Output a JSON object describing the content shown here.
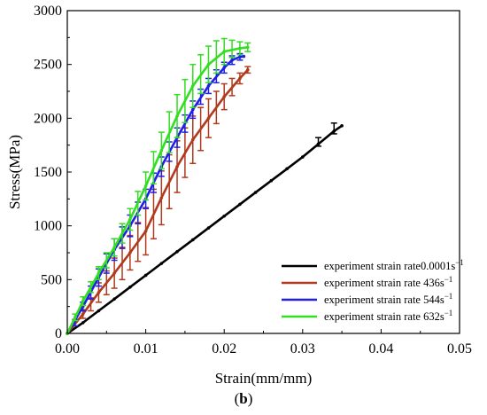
{
  "chart_data": {
    "type": "line",
    "xlabel": "Strain(mm/mm)",
    "ylabel": "Stress(MPa)",
    "xlim": [
      0,
      0.05
    ],
    "ylim": [
      0,
      3000
    ],
    "xticks": [
      "0.00",
      "0.01",
      "0.02",
      "0.03",
      "0.04",
      "0.05"
    ],
    "yticks": [
      "0",
      "500",
      "1000",
      "1500",
      "2000",
      "2500",
      "3000"
    ],
    "grid": false,
    "legend_position": "bottom-right",
    "caption_prefix": "(",
    "caption_label": "b",
    "caption_suffix": ")",
    "series": [
      {
        "name": "experiment strain rate0.0001s",
        "name_sup": "−1",
        "color": "#000000",
        "points": [
          [
            0,
            0
          ],
          [
            0.002,
            100
          ],
          [
            0.004,
            210
          ],
          [
            0.006,
            320
          ],
          [
            0.008,
            430
          ],
          [
            0.01,
            540
          ],
          [
            0.012,
            650
          ],
          [
            0.014,
            760
          ],
          [
            0.016,
            870
          ],
          [
            0.018,
            980
          ],
          [
            0.02,
            1090
          ],
          [
            0.022,
            1200
          ],
          [
            0.024,
            1310
          ],
          [
            0.026,
            1420
          ],
          [
            0.028,
            1530
          ],
          [
            0.03,
            1640
          ],
          [
            0.032,
            1760
          ],
          [
            0.034,
            1880
          ],
          [
            0.035,
            1930
          ]
        ],
        "errorbars": [
          [
            0.032,
            1780,
            40
          ],
          [
            0.034,
            1905,
            50
          ]
        ]
      },
      {
        "name": "experiment strain rate 436s",
        "name_sup": "−1",
        "color": "#b03a1e",
        "points": [
          [
            0,
            0
          ],
          [
            0.002,
            180
          ],
          [
            0.004,
            380
          ],
          [
            0.006,
            560
          ],
          [
            0.008,
            750
          ],
          [
            0.01,
            950
          ],
          [
            0.012,
            1260
          ],
          [
            0.014,
            1550
          ],
          [
            0.016,
            1800
          ],
          [
            0.018,
            2000
          ],
          [
            0.02,
            2200
          ],
          [
            0.022,
            2370
          ],
          [
            0.023,
            2450
          ]
        ],
        "errorbars": [
          [
            0.002,
            180,
            40
          ],
          [
            0.003,
            270,
            60
          ],
          [
            0.004,
            380,
            90
          ],
          [
            0.005,
            470,
            110
          ],
          [
            0.006,
            560,
            140
          ],
          [
            0.007,
            650,
            150
          ],
          [
            0.008,
            750,
            160
          ],
          [
            0.009,
            850,
            180
          ],
          [
            0.01,
            950,
            220
          ],
          [
            0.011,
            1110,
            230
          ],
          [
            0.012,
            1260,
            250
          ],
          [
            0.013,
            1410,
            250
          ],
          [
            0.014,
            1550,
            240
          ],
          [
            0.015,
            1680,
            230
          ],
          [
            0.016,
            1800,
            220
          ],
          [
            0.017,
            1900,
            200
          ],
          [
            0.018,
            2000,
            180
          ],
          [
            0.019,
            2100,
            150
          ],
          [
            0.02,
            2200,
            120
          ],
          [
            0.021,
            2290,
            80
          ],
          [
            0.022,
            2370,
            50
          ],
          [
            0.023,
            2450,
            30
          ]
        ]
      },
      {
        "name": "experiment strain rate 544s",
        "name_sup": "−1",
        "color": "#1f1fe6",
        "points": [
          [
            0,
            0
          ],
          [
            0.002,
            250
          ],
          [
            0.004,
            520
          ],
          [
            0.006,
            780
          ],
          [
            0.008,
            1000
          ],
          [
            0.01,
            1250
          ],
          [
            0.012,
            1550
          ],
          [
            0.014,
            1820
          ],
          [
            0.016,
            2080
          ],
          [
            0.018,
            2300
          ],
          [
            0.02,
            2470
          ],
          [
            0.021,
            2540
          ],
          [
            0.022,
            2570
          ],
          [
            0.0225,
            2575
          ]
        ],
        "errorbars": [
          [
            0.001,
            100,
            30
          ],
          [
            0.002,
            250,
            40
          ],
          [
            0.003,
            380,
            60
          ],
          [
            0.004,
            520,
            80
          ],
          [
            0.005,
            650,
            90
          ],
          [
            0.006,
            780,
            100
          ],
          [
            0.007,
            890,
            100
          ],
          [
            0.008,
            1000,
            100
          ],
          [
            0.009,
            1120,
            100
          ],
          [
            0.01,
            1250,
            90
          ],
          [
            0.011,
            1400,
            90
          ],
          [
            0.012,
            1550,
            90
          ],
          [
            0.013,
            1690,
            90
          ],
          [
            0.014,
            1820,
            90
          ],
          [
            0.015,
            1950,
            80
          ],
          [
            0.016,
            2080,
            80
          ],
          [
            0.017,
            2200,
            70
          ],
          [
            0.018,
            2300,
            70
          ],
          [
            0.019,
            2390,
            60
          ],
          [
            0.02,
            2470,
            50
          ],
          [
            0.021,
            2540,
            40
          ],
          [
            0.022,
            2570,
            30
          ]
        ]
      },
      {
        "name": "experiment strain rate 632s",
        "name_sup": "−1",
        "color": "#33dd22",
        "points": [
          [
            0,
            0
          ],
          [
            0.001,
            150
          ],
          [
            0.002,
            300
          ],
          [
            0.004,
            560
          ],
          [
            0.006,
            800
          ],
          [
            0.008,
            1060
          ],
          [
            0.01,
            1370
          ],
          [
            0.012,
            1700
          ],
          [
            0.014,
            2020
          ],
          [
            0.016,
            2300
          ],
          [
            0.018,
            2500
          ],
          [
            0.02,
            2620
          ],
          [
            0.022,
            2650
          ],
          [
            0.023,
            2660
          ]
        ],
        "errorbars": [
          [
            0.001,
            150,
            30
          ],
          [
            0.002,
            300,
            40
          ],
          [
            0.003,
            430,
            50
          ],
          [
            0.004,
            560,
            60
          ],
          [
            0.005,
            680,
            70
          ],
          [
            0.006,
            800,
            80
          ],
          [
            0.007,
            930,
            90
          ],
          [
            0.008,
            1060,
            100
          ],
          [
            0.009,
            1210,
            110
          ],
          [
            0.01,
            1370,
            130
          ],
          [
            0.011,
            1540,
            150
          ],
          [
            0.012,
            1700,
            170
          ],
          [
            0.013,
            1870,
            190
          ],
          [
            0.014,
            2020,
            200
          ],
          [
            0.015,
            2160,
            200
          ],
          [
            0.016,
            2300,
            200
          ],
          [
            0.017,
            2410,
            180
          ],
          [
            0.018,
            2500,
            170
          ],
          [
            0.019,
            2570,
            150
          ],
          [
            0.02,
            2620,
            120
          ],
          [
            0.021,
            2645,
            80
          ],
          [
            0.022,
            2650,
            60
          ],
          [
            0.023,
            2660,
            40
          ]
        ]
      }
    ]
  }
}
